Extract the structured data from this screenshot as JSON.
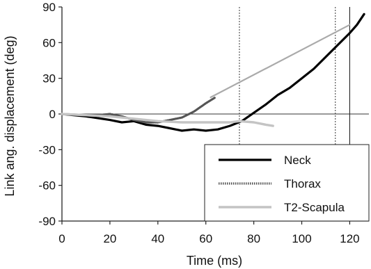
{
  "chart_data": {
    "type": "line",
    "xlabel": "Time (ms)",
    "ylabel": "Link ang. displacement (deg)",
    "xlim": [
      0,
      128
    ],
    "ylim": [
      -90,
      90
    ],
    "x_ticks": [
      "0",
      "20",
      "40",
      "60",
      "80",
      "100",
      "120"
    ],
    "y_ticks": [
      "90",
      "60",
      "30",
      "0",
      "-30",
      "-60",
      "-90"
    ],
    "legend_position": "bottom-right",
    "grid": false,
    "reference_lines": {
      "horizontal_at_y": 0,
      "vertical_dotted_x": [
        74,
        114
      ],
      "vertical_solid_x": [
        120
      ]
    },
    "series": [
      {
        "name": "Neck",
        "color": "#000000",
        "style": "solid-thick",
        "points": [
          [
            0,
            0
          ],
          [
            10,
            -2
          ],
          [
            20,
            -5
          ],
          [
            25,
            -7
          ],
          [
            30,
            -6
          ],
          [
            35,
            -9
          ],
          [
            40,
            -10
          ],
          [
            45,
            -12
          ],
          [
            50,
            -14
          ],
          [
            55,
            -13
          ],
          [
            60,
            -14
          ],
          [
            65,
            -13
          ],
          [
            70,
            -10
          ],
          [
            75,
            -6
          ],
          [
            80,
            1
          ],
          [
            85,
            8
          ],
          [
            90,
            16
          ],
          [
            95,
            22
          ],
          [
            100,
            30
          ],
          [
            105,
            38
          ],
          [
            110,
            48
          ],
          [
            115,
            58
          ],
          [
            120,
            68
          ],
          [
            123,
            75
          ],
          [
            126,
            84
          ]
        ]
      },
      {
        "name": "Thorax",
        "color": "#555555",
        "style": "dotted",
        "points": [
          [
            0,
            0
          ],
          [
            10,
            -1
          ],
          [
            15,
            -1
          ],
          [
            20,
            0
          ],
          [
            25,
            -2
          ],
          [
            30,
            -5
          ],
          [
            35,
            -7
          ],
          [
            40,
            -7
          ],
          [
            45,
            -5
          ],
          [
            50,
            -3
          ],
          [
            55,
            2
          ],
          [
            60,
            9
          ],
          [
            64,
            14
          ]
        ]
      },
      {
        "name": "T2-Scapula",
        "color": "#bbbbbb",
        "style": "solid",
        "points": [
          [
            0,
            0
          ],
          [
            10,
            -1
          ],
          [
            20,
            -2
          ],
          [
            30,
            -4
          ],
          [
            40,
            -6
          ],
          [
            50,
            -7
          ],
          [
            60,
            -7
          ],
          [
            70,
            -7
          ],
          [
            74,
            -6
          ],
          [
            80,
            -7
          ],
          [
            85,
            -9
          ],
          [
            88,
            -10
          ]
        ]
      },
      {
        "name": "",
        "color": "#aaaaaa",
        "style": "solid-double",
        "points": [
          [
            62,
            14
          ],
          [
            120,
            75
          ]
        ]
      }
    ]
  }
}
